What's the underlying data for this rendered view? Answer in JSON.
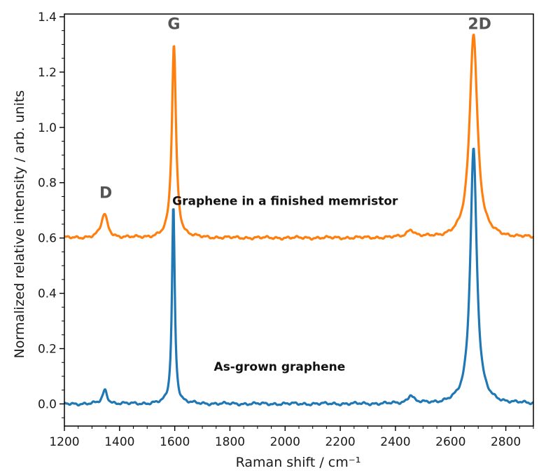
{
  "chart_data": {
    "type": "line",
    "title": "",
    "xlabel": "Raman shift / cm⁻¹",
    "ylabel": "Normalized relative intensity / arb. units",
    "xlim": [
      1200,
      2900
    ],
    "ylim": [
      -0.08,
      1.41
    ],
    "xticks": [
      1200,
      1400,
      1600,
      1800,
      2000,
      2200,
      2400,
      2600,
      2800
    ],
    "yticks": [
      0.0,
      0.2,
      0.4,
      0.6,
      0.8,
      1.0,
      1.2,
      1.4
    ],
    "ytick_labels": [
      "0.0",
      "0.2",
      "0.4",
      "0.6",
      "0.8",
      "1.0",
      "1.2",
      "1.4"
    ],
    "grid": false,
    "series": [
      {
        "name": "Graphene in a finished memristor",
        "color": "#ff7f0e",
        "baseline": 0.6,
        "peaks": [
          {
            "center": 1345,
            "height": 0.085,
            "width": 14
          },
          {
            "center": 1597,
            "height": 0.7,
            "width": 9
          },
          {
            "center": 2455,
            "height": 0.028,
            "width": 16
          },
          {
            "center": 2683,
            "height": 0.74,
            "width": 17
          }
        ]
      },
      {
        "name": "As-grown graphene",
        "color": "#1f77b4",
        "baseline": 0.0,
        "peaks": [
          {
            "center": 1347,
            "height": 0.05,
            "width": 10
          },
          {
            "center": 1595,
            "height": 0.72,
            "width": 6
          },
          {
            "center": 2455,
            "height": 0.03,
            "width": 13
          },
          {
            "center": 2683,
            "height": 0.925,
            "width": 14
          }
        ]
      }
    ],
    "annotations": [
      {
        "text": "D",
        "x": 1350,
        "y": 0.745,
        "kind": "peak"
      },
      {
        "text": "G",
        "x": 1597,
        "y": 1.355,
        "kind": "peak"
      },
      {
        "text": "2D",
        "x": 2705,
        "y": 1.355,
        "kind": "peak"
      },
      {
        "text": "Graphene in a finished memristor",
        "x": 2000,
        "y": 0.72,
        "kind": "series"
      },
      {
        "text": "As-grown graphene",
        "x": 1980,
        "y": 0.12,
        "kind": "series"
      }
    ]
  }
}
